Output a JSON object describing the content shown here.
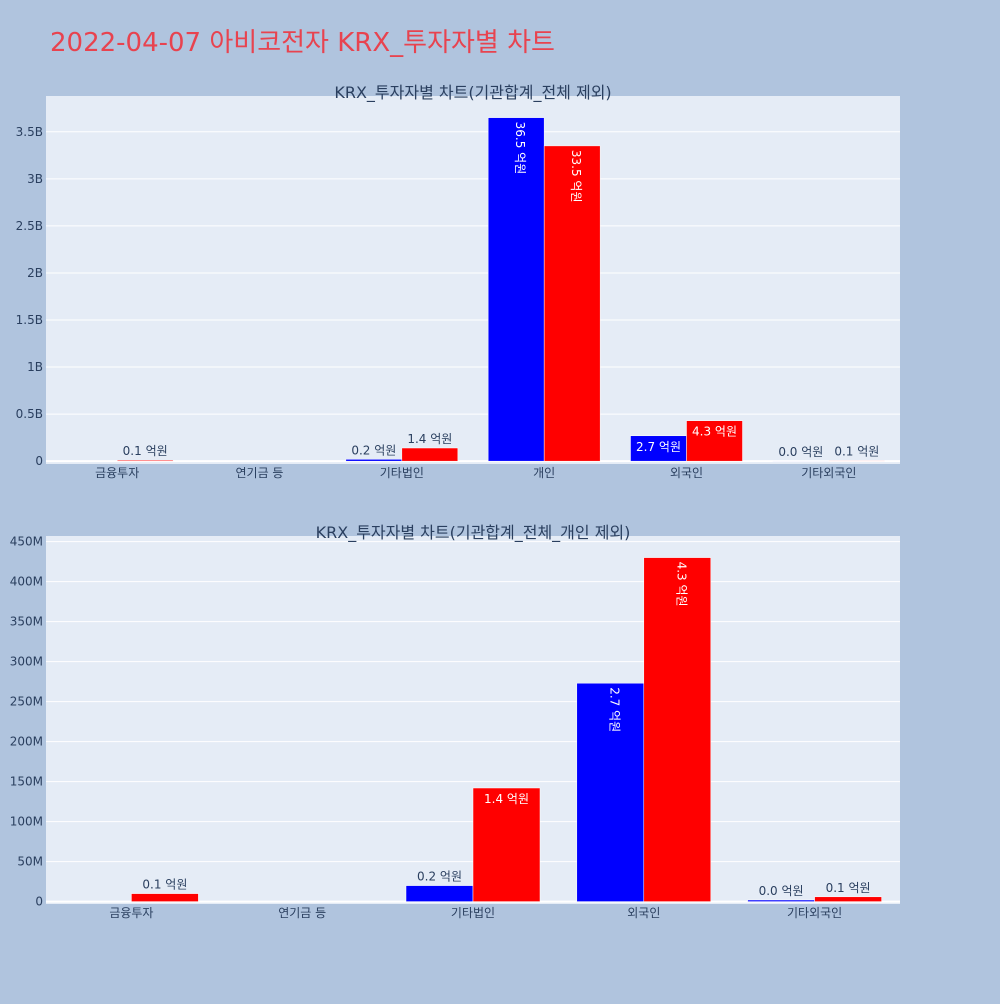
{
  "page": {
    "title": "2022-04-07 아비코전자 KRX_투자자별 차트"
  },
  "colors": {
    "buy": "#0000ff",
    "sell": "#ff0000",
    "plot_bg": "#e5ecf6",
    "page_bg": "#b0c4de",
    "title": "#e8434f"
  },
  "chart_data": [
    {
      "type": "bar",
      "title": "KRX_투자자별 차트(기관합계_전체 제외)",
      "categories": [
        "금융투자",
        "연기금 등",
        "기타법인",
        "개인",
        "외국인",
        "기타외국인"
      ],
      "series": [
        {
          "color": "#0000ff",
          "values": [
            0,
            0,
            20000000,
            3650000000,
            270000000,
            2000000
          ],
          "labels": [
            "",
            "",
            "0.2 억원",
            "36.5 억원",
            "2.7 억원",
            "0.0 억원"
          ]
        },
        {
          "color": "#ff0000",
          "values": [
            10000000,
            0,
            140000000,
            3350000000,
            430000000,
            6000000
          ],
          "labels": [
            "0.1 억원",
            "",
            "1.4 억원",
            "33.5 억원",
            "4.3 억원",
            "0.1 억원"
          ]
        }
      ],
      "ylim": [
        -30000000,
        3880000000
      ],
      "yticks": [
        0,
        500000000,
        1000000000,
        1500000000,
        2000000000,
        2500000000,
        3000000000,
        3500000000
      ],
      "yticklabels": [
        "0",
        "0.5B",
        "1B",
        "1.5B",
        "2B",
        "2.5B",
        "3B",
        "3.5B"
      ],
      "grid": true,
      "legend": "none"
    },
    {
      "type": "bar",
      "title": "KRX_투자자별 차트(기관합계_전체_개인 제외)",
      "categories": [
        "금융투자",
        "연기금 등",
        "기타법인",
        "외국인",
        "기타외국인"
      ],
      "series": [
        {
          "color": "#0000ff",
          "values": [
            0,
            0,
            20000000,
            273000000,
            2000000
          ],
          "labels": [
            "",
            "",
            "0.2 억원",
            "2.7 억원",
            "0.0 억원"
          ]
        },
        {
          "color": "#ff0000",
          "values": [
            10000000,
            0,
            142000000,
            430000000,
            6000000
          ],
          "labels": [
            "0.1 억원",
            "",
            "1.4 억원",
            "4.3 억원",
            "0.1 억원"
          ]
        }
      ],
      "ylim": [
        -3000000,
        457000000
      ],
      "yticks": [
        0,
        50000000,
        100000000,
        150000000,
        200000000,
        250000000,
        300000000,
        350000000,
        400000000,
        450000000
      ],
      "yticklabels": [
        "0",
        "50M",
        "100M",
        "150M",
        "200M",
        "250M",
        "300M",
        "350M",
        "400M",
        "450M"
      ],
      "grid": true,
      "legend": "none"
    }
  ]
}
